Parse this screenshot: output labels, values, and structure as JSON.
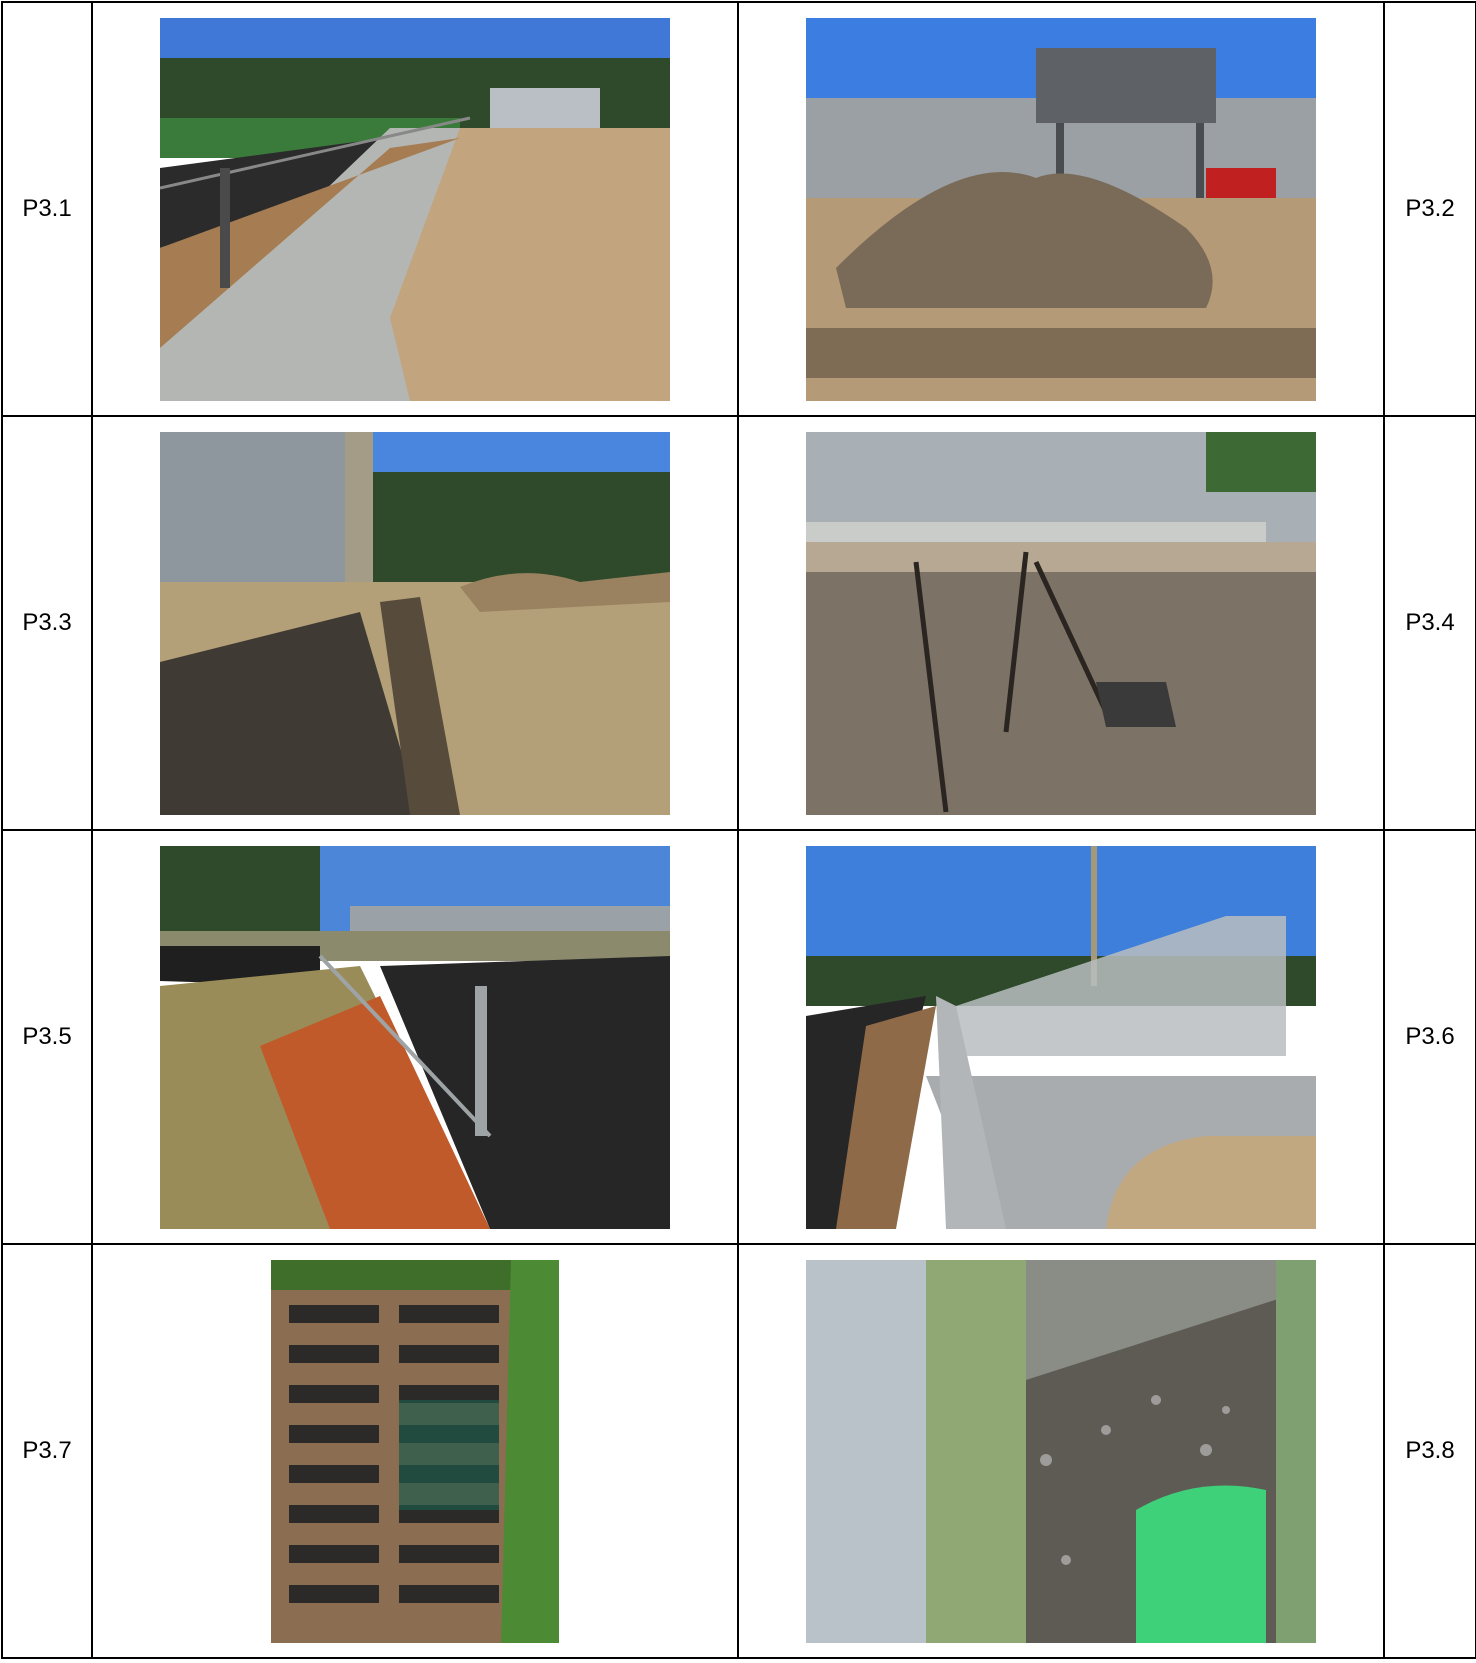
{
  "photos": [
    {
      "label": "P3.1",
      "subject": "concrete-walkway-along-track-fence"
    },
    {
      "label": "P3.2",
      "subject": "soil-pile-near-bleachers-press-box"
    },
    {
      "label": "P3.3",
      "subject": "trench-behind-bleachers"
    },
    {
      "label": "P3.4",
      "subject": "eroded-slope-with-drain-grate"
    },
    {
      "label": "P3.5",
      "subject": "chain-link-fence-red-clay-track"
    },
    {
      "label": "P3.6",
      "subject": "bleachers-ramp-and-concrete-path"
    },
    {
      "label": "P3.7",
      "subject": "storm-drain-grate-closeup"
    },
    {
      "label": "P3.8",
      "subject": "green-pipe-in-gravel-closeup"
    }
  ]
}
